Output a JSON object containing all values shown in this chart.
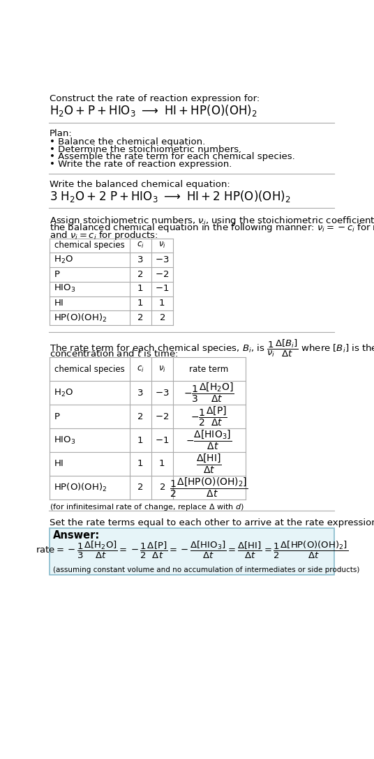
{
  "title_line1": "Construct the rate of reaction expression for:",
  "plan_header": "Plan:",
  "plan_items": [
    "• Balance the chemical equation.",
    "• Determine the stoichiometric numbers.",
    "• Assemble the rate term for each chemical species.",
    "• Write the rate of reaction expression."
  ],
  "balanced_header": "Write the balanced chemical equation:",
  "bg_color": "#ffffff",
  "answer_bg_color": "#e8f8ff",
  "answer_border_color": "#88ccdd",
  "table_border_color": "#aaaaaa",
  "text_color": "#000000",
  "font_size": 9.5,
  "eq_font_size": 12
}
